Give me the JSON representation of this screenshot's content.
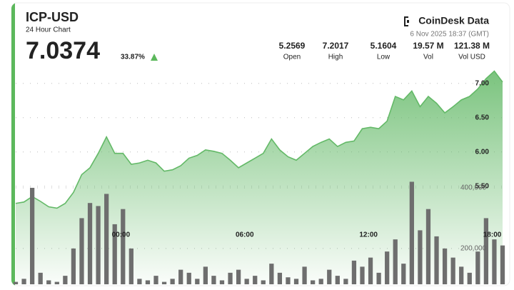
{
  "header": {
    "symbol": "ICP-USD",
    "subtitle": "24 Hour Chart",
    "price": "7.0374",
    "change": "33.87%",
    "brand": "CoinDesk Data",
    "timestamp": "6 Nov 2025 18:37 (GMT)",
    "stats": [
      {
        "value": "5.2569",
        "label": "Open"
      },
      {
        "value": "7.2017",
        "label": "High"
      },
      {
        "value": "5.1604",
        "label": "Low"
      },
      {
        "value": "19.57 M",
        "label": "Vol"
      },
      {
        "value": "121.38 M",
        "label": "Vol USD"
      }
    ]
  },
  "chart_data": {
    "type": "line",
    "x": [
      -5.1,
      -4.7,
      -4.3,
      -3.9,
      -3.5,
      -3.1,
      -2.7,
      -2.3,
      -1.9,
      -1.5,
      -1.1,
      -0.7,
      -0.3,
      0.1,
      0.5,
      0.9,
      1.3,
      1.7,
      2.1,
      2.5,
      2.9,
      3.3,
      3.7,
      4.1,
      4.5,
      4.9,
      5.3,
      5.7,
      6.1,
      6.5,
      6.9,
      7.3,
      7.7,
      8.1,
      8.5,
      8.9,
      9.3,
      9.7,
      10.1,
      10.5,
      10.9,
      11.3,
      11.7,
      12.1,
      12.5,
      12.9,
      13.3,
      13.7,
      14.1,
      14.5,
      14.9,
      15.3,
      15.7,
      16.1,
      16.5,
      16.9,
      17.3,
      17.7,
      18.1,
      18.5
    ],
    "xlim": [
      -5.1,
      18.5
    ],
    "xticks": [
      {
        "value": 0,
        "label": "00:00"
      },
      {
        "value": 6,
        "label": "06:00"
      },
      {
        "value": 12,
        "label": "12:00"
      },
      {
        "value": 18,
        "label": "18:00"
      }
    ],
    "series": [
      {
        "type": "area",
        "color": "#63b967",
        "values": [
          5.25,
          5.27,
          5.35,
          5.28,
          5.2,
          5.18,
          5.25,
          5.41,
          5.67,
          5.77,
          5.98,
          6.22,
          5.98,
          5.98,
          5.82,
          5.84,
          5.88,
          5.84,
          5.72,
          5.74,
          5.8,
          5.91,
          5.95,
          6.03,
          6.01,
          5.98,
          5.88,
          5.77,
          5.84,
          5.91,
          5.98,
          6.19,
          6.03,
          5.93,
          5.88,
          5.98,
          6.08,
          6.14,
          6.19,
          6.08,
          6.14,
          6.16,
          6.34,
          6.36,
          6.34,
          6.45,
          6.81,
          6.76,
          6.89,
          6.66,
          6.81,
          6.71,
          6.57,
          6.66,
          6.76,
          6.81,
          6.92,
          7.07,
          7.18,
          7.02
        ]
      },
      {
        "type": "bar",
        "axis": "y2",
        "color": "#6e6e6e",
        "values": [
          90000,
          100000,
          400000,
          120000,
          95000,
          90000,
          110000,
          200000,
          300000,
          350000,
          340000,
          380000,
          280000,
          330000,
          200000,
          100000,
          95000,
          110000,
          90000,
          100000,
          130000,
          120000,
          100000,
          140000,
          110000,
          95000,
          120000,
          130000,
          100000,
          110000,
          95000,
          150000,
          120000,
          105000,
          100000,
          140000,
          95000,
          100000,
          130000,
          110000,
          100000,
          160000,
          140000,
          170000,
          120000,
          190000,
          230000,
          150000,
          420000,
          260000,
          330000,
          240000,
          200000,
          170000,
          140000,
          120000,
          190000,
          300000,
          230000,
          210000
        ]
      }
    ],
    "ylim": [
      4.07,
      7.3
    ],
    "yticks": [
      {
        "value": 5.5,
        "label": "5.50"
      },
      {
        "value": 6,
        "label": "6.00"
      },
      {
        "value": 6.5,
        "label": "6.50"
      },
      {
        "value": 7,
        "label": "7.00"
      }
    ],
    "y2lim": [
      82000,
      812000
    ],
    "y2ticks": [
      {
        "value": 200000,
        "label": "200,000"
      },
      {
        "value": 400000,
        "label": "400,000"
      }
    ],
    "grid": true
  }
}
